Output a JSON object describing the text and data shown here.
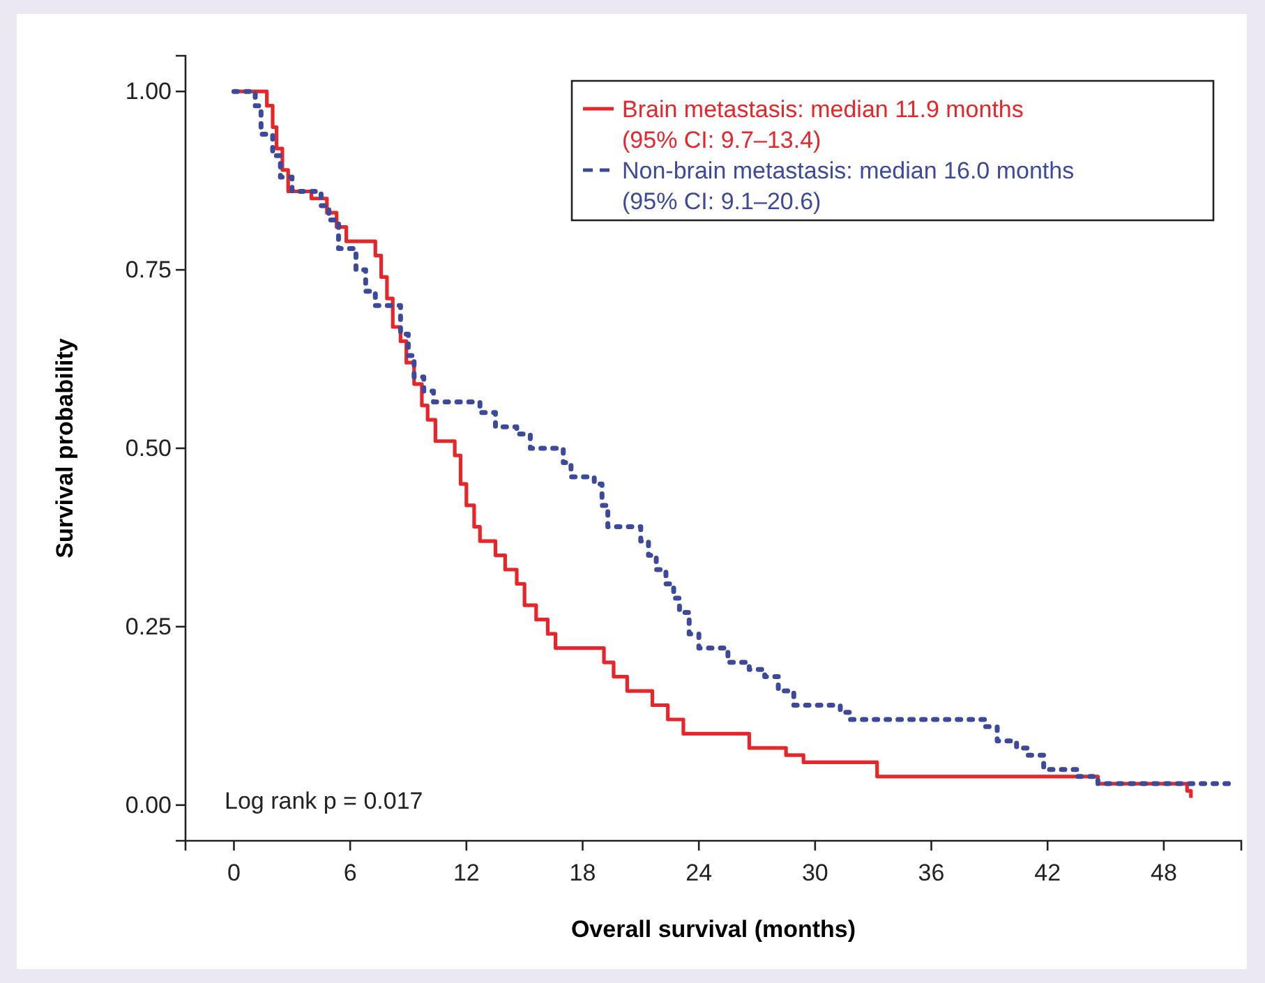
{
  "chart_data": {
    "type": "step",
    "xlabel": "Overall survival (months)",
    "ylabel": "Survival probability",
    "xlim": [
      -2.5,
      52
    ],
    "xticks": [
      0,
      6,
      12,
      18,
      24,
      30,
      36,
      42,
      48
    ],
    "ylim": [
      -0.05,
      1.05
    ],
    "yticks": [
      {
        "value": 0,
        "label": "0.00"
      },
      {
        "value": 0.25,
        "label": "0.25"
      },
      {
        "value": 0.5,
        "label": "0.50"
      },
      {
        "value": 0.75,
        "label": "0.75"
      },
      {
        "value": 1,
        "label": "1.00"
      }
    ],
    "grid": false,
    "legend": "top right",
    "annotations": [
      "Log rank p = 0.017"
    ],
    "series": [
      {
        "name": "Brain metastasis: median 11.9 months\n(95% CI: 9.7–13.4)",
        "color": "#e8262a",
        "line_style": "solid",
        "x": [
          0,
          1.7,
          2.0,
          2.2,
          2.5,
          2.8,
          4.0,
          4.8,
          5.3,
          5.8,
          7.3,
          7.6,
          7.9,
          8.2,
          8.6,
          8.9,
          9.3,
          9.7,
          10.0,
          10.4,
          11.4,
          11.7,
          12.0,
          12.4,
          12.7,
          13.5,
          14.0,
          14.6,
          15.0,
          15.6,
          16.2,
          16.6,
          19.1,
          19.6,
          20.3,
          21.6,
          22.4,
          23.2,
          26.6,
          28.5,
          29.4,
          33.2,
          44.6,
          49.2,
          49.4
        ],
        "values": [
          1.0,
          0.98,
          0.95,
          0.92,
          0.89,
          0.86,
          0.85,
          0.83,
          0.81,
          0.79,
          0.77,
          0.74,
          0.71,
          0.67,
          0.65,
          0.62,
          0.59,
          0.56,
          0.54,
          0.51,
          0.49,
          0.45,
          0.42,
          0.39,
          0.37,
          0.35,
          0.33,
          0.31,
          0.28,
          0.26,
          0.24,
          0.22,
          0.2,
          0.18,
          0.16,
          0.14,
          0.12,
          0.1,
          0.08,
          0.07,
          0.06,
          0.04,
          0.03,
          0.02,
          0.01
        ]
      },
      {
        "name": "Non-brain metastasis: median 16.0 months\n(95% CI: 9.1–20.6)",
        "color": "#3d4a9c",
        "line_style": "dotted",
        "x": [
          0,
          1.1,
          1.4,
          2.0,
          2.4,
          3.0,
          4.5,
          4.9,
          5.4,
          6.3,
          6.8,
          7.3,
          8.6,
          9.0,
          9.3,
          9.8,
          10.3,
          12.7,
          13.5,
          14.6,
          15.3,
          17.0,
          17.4,
          18.6,
          19.0,
          19.3,
          21.0,
          21.4,
          21.8,
          22.3,
          22.7,
          23.0,
          23.5,
          24.0,
          25.5,
          26.6,
          27.4,
          28.1,
          28.9,
          31.3,
          31.8,
          38.8,
          39.4,
          40.4,
          41.0,
          41.8,
          43.5,
          44.6,
          51.4
        ],
        "values": [
          1.0,
          0.98,
          0.94,
          0.91,
          0.88,
          0.86,
          0.84,
          0.82,
          0.78,
          0.75,
          0.72,
          0.7,
          0.66,
          0.63,
          0.6,
          0.58,
          0.565,
          0.55,
          0.53,
          0.52,
          0.5,
          0.48,
          0.46,
          0.45,
          0.42,
          0.39,
          0.37,
          0.35,
          0.33,
          0.31,
          0.29,
          0.27,
          0.24,
          0.22,
          0.2,
          0.19,
          0.18,
          0.16,
          0.14,
          0.13,
          0.12,
          0.11,
          0.09,
          0.08,
          0.07,
          0.05,
          0.04,
          0.03,
          0.03
        ]
      }
    ]
  }
}
